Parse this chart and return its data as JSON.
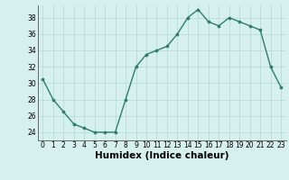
{
  "x": [
    0,
    1,
    2,
    3,
    4,
    5,
    6,
    7,
    8,
    9,
    10,
    11,
    12,
    13,
    14,
    15,
    16,
    17,
    18,
    19,
    20,
    21,
    22,
    23
  ],
  "y": [
    30.5,
    28,
    26.5,
    25,
    24.5,
    24,
    24,
    24,
    28,
    32,
    33.5,
    34,
    34.5,
    36,
    38,
    39,
    37.5,
    37,
    38,
    37.5,
    37,
    36.5,
    32,
    29.5
  ],
  "line_color": "#2e7d6e",
  "bg_color": "#d6f0ee",
  "grid_color": "#b8dcd8",
  "xlabel": "Humidex (Indice chaleur)",
  "ylim": [
    23.0,
    39.5
  ],
  "xlim": [
    -0.5,
    23.5
  ],
  "yticks": [
    24,
    26,
    28,
    30,
    32,
    34,
    36,
    38
  ],
  "xticks": [
    0,
    1,
    2,
    3,
    4,
    5,
    6,
    7,
    8,
    9,
    10,
    11,
    12,
    13,
    14,
    15,
    16,
    17,
    18,
    19,
    20,
    21,
    22,
    23
  ],
  "tick_fontsize": 5.5,
  "xlabel_fontsize": 7.5
}
